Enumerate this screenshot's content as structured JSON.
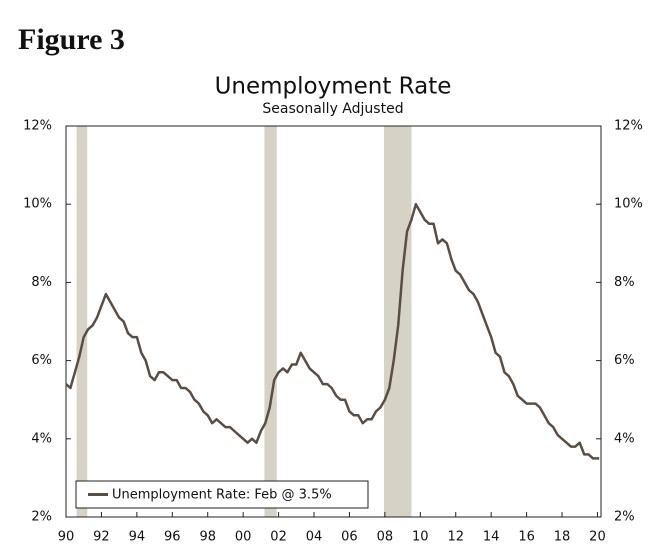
{
  "figure_label": "Figure 3",
  "chart_data": {
    "type": "line",
    "title": "Unemployment Rate",
    "subtitle": "Seasonally Adjusted",
    "x": [
      1990,
      1990.25,
      1990.5,
      1990.75,
      1991,
      1991.25,
      1991.5,
      1991.75,
      1992,
      1992.25,
      1992.5,
      1992.75,
      1993,
      1993.25,
      1993.5,
      1993.75,
      1994,
      1994.25,
      1994.5,
      1994.75,
      1995,
      1995.25,
      1995.5,
      1995.75,
      1996,
      1996.25,
      1996.5,
      1996.75,
      1997,
      1997.25,
      1997.5,
      1997.75,
      1998,
      1998.25,
      1998.5,
      1998.75,
      1999,
      1999.25,
      1999.5,
      1999.75,
      2000,
      2000.25,
      2000.5,
      2000.75,
      2001,
      2001.25,
      2001.5,
      2001.75,
      2002,
      2002.25,
      2002.5,
      2002.75,
      2003,
      2003.25,
      2003.5,
      2003.75,
      2004,
      2004.25,
      2004.5,
      2004.75,
      2005,
      2005.25,
      2005.5,
      2005.75,
      2006,
      2006.25,
      2006.5,
      2006.75,
      2007,
      2007.25,
      2007.5,
      2007.75,
      2008,
      2008.25,
      2008.5,
      2008.75,
      2009,
      2009.25,
      2009.5,
      2009.75,
      2010,
      2010.25,
      2010.5,
      2010.75,
      2011,
      2011.25,
      2011.5,
      2011.75,
      2012,
      2012.25,
      2012.5,
      2012.75,
      2013,
      2013.25,
      2013.5,
      2013.75,
      2014,
      2014.25,
      2014.5,
      2014.75,
      2015,
      2015.25,
      2015.5,
      2015.75,
      2016,
      2016.25,
      2016.5,
      2016.75,
      2017,
      2017.25,
      2017.5,
      2017.75,
      2018,
      2018.25,
      2018.5,
      2018.75,
      2019,
      2019.25,
      2019.5,
      2019.75,
      2020.1
    ],
    "series": [
      {
        "name": "Unemployment Rate: Feb @ 3.5%",
        "color": "#5a4e44",
        "values": [
          5.4,
          5.3,
          5.7,
          6.1,
          6.6,
          6.8,
          6.9,
          7.1,
          7.4,
          7.7,
          7.5,
          7.3,
          7.1,
          7.0,
          6.7,
          6.6,
          6.6,
          6.2,
          6.0,
          5.6,
          5.5,
          5.7,
          5.7,
          5.6,
          5.5,
          5.5,
          5.3,
          5.3,
          5.2,
          5.0,
          4.9,
          4.7,
          4.6,
          4.4,
          4.5,
          4.4,
          4.3,
          4.3,
          4.2,
          4.1,
          4.0,
          3.9,
          4.0,
          3.9,
          4.2,
          4.4,
          4.8,
          5.5,
          5.7,
          5.8,
          5.7,
          5.9,
          5.9,
          6.2,
          6.0,
          5.8,
          5.7,
          5.6,
          5.4,
          5.4,
          5.3,
          5.1,
          5.0,
          5.0,
          4.7,
          4.6,
          4.6,
          4.4,
          4.5,
          4.5,
          4.7,
          4.8,
          5.0,
          5.3,
          6.0,
          6.9,
          8.3,
          9.3,
          9.6,
          10.0,
          9.8,
          9.6,
          9.5,
          9.5,
          9.0,
          9.1,
          9.0,
          8.6,
          8.3,
          8.2,
          8.0,
          7.8,
          7.7,
          7.5,
          7.2,
          6.9,
          6.6,
          6.2,
          6.1,
          5.7,
          5.6,
          5.4,
          5.1,
          5.0,
          4.9,
          4.9,
          4.9,
          4.8,
          4.6,
          4.4,
          4.3,
          4.1,
          4.0,
          3.9,
          3.8,
          3.8,
          3.9,
          3.6,
          3.6,
          3.5,
          3.5
        ]
      }
    ],
    "recessions": [
      [
        1990.6,
        1991.2
      ],
      [
        2001.2,
        2001.9
      ],
      [
        2007.95,
        2009.5
      ]
    ],
    "recession_color": "#d6d3c6",
    "xlim": [
      1990,
      2020.2
    ],
    "xticks": [
      {
        "value": 1990,
        "label": "90"
      },
      {
        "value": 1992,
        "label": "92"
      },
      {
        "value": 1994,
        "label": "94"
      },
      {
        "value": 1996,
        "label": "96"
      },
      {
        "value": 1998,
        "label": "98"
      },
      {
        "value": 2000,
        "label": "00"
      },
      {
        "value": 2002,
        "label": "02"
      },
      {
        "value": 2004,
        "label": "04"
      },
      {
        "value": 2006,
        "label": "06"
      },
      {
        "value": 2008,
        "label": "08"
      },
      {
        "value": 2010,
        "label": "10"
      },
      {
        "value": 2012,
        "label": "12"
      },
      {
        "value": 2014,
        "label": "14"
      },
      {
        "value": 2016,
        "label": "16"
      },
      {
        "value": 2018,
        "label": "18"
      },
      {
        "value": 2020,
        "label": "20"
      }
    ],
    "ylim": [
      2,
      12
    ],
    "yticks": [
      {
        "value": 2,
        "label": "2%"
      },
      {
        "value": 4,
        "label": "4%"
      },
      {
        "value": 6,
        "label": "6%"
      },
      {
        "value": 8,
        "label": "8%"
      },
      {
        "value": 10,
        "label": "10%"
      },
      {
        "value": 12,
        "label": "12%"
      }
    ],
    "legend": "lower-left"
  }
}
